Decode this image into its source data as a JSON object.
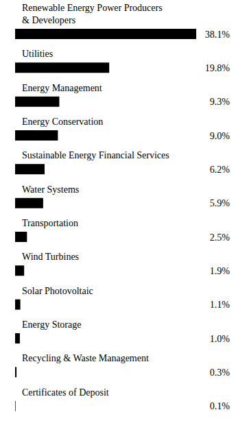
{
  "chart_data": {
    "type": "bar",
    "orientation": "horizontal",
    "categories": [
      "Renewable Energy Power Producers & Developers",
      "Utilities",
      "Energy Management",
      "Energy Conservation",
      "Sustainable Energy Financial Services",
      "Water Systems",
      "Transportation",
      "Wind Turbines",
      "Solar Photovoltaic",
      "Energy Storage",
      "Recycling & Waste Management",
      "Certificates of Deposit"
    ],
    "values": [
      38.1,
      19.8,
      9.3,
      9.0,
      6.2,
      5.9,
      2.5,
      1.9,
      1.1,
      1.0,
      0.3,
      0.1
    ],
    "value_labels": [
      "38.1%",
      "19.8%",
      "9.3%",
      "9.0%",
      "6.2%",
      "5.9%",
      "2.5%",
      "1.9%",
      "1.1%",
      "1.0%",
      "0.3%",
      "0.1%"
    ],
    "color": "#000000",
    "data_labels": true,
    "tick_labels": "y"
  }
}
